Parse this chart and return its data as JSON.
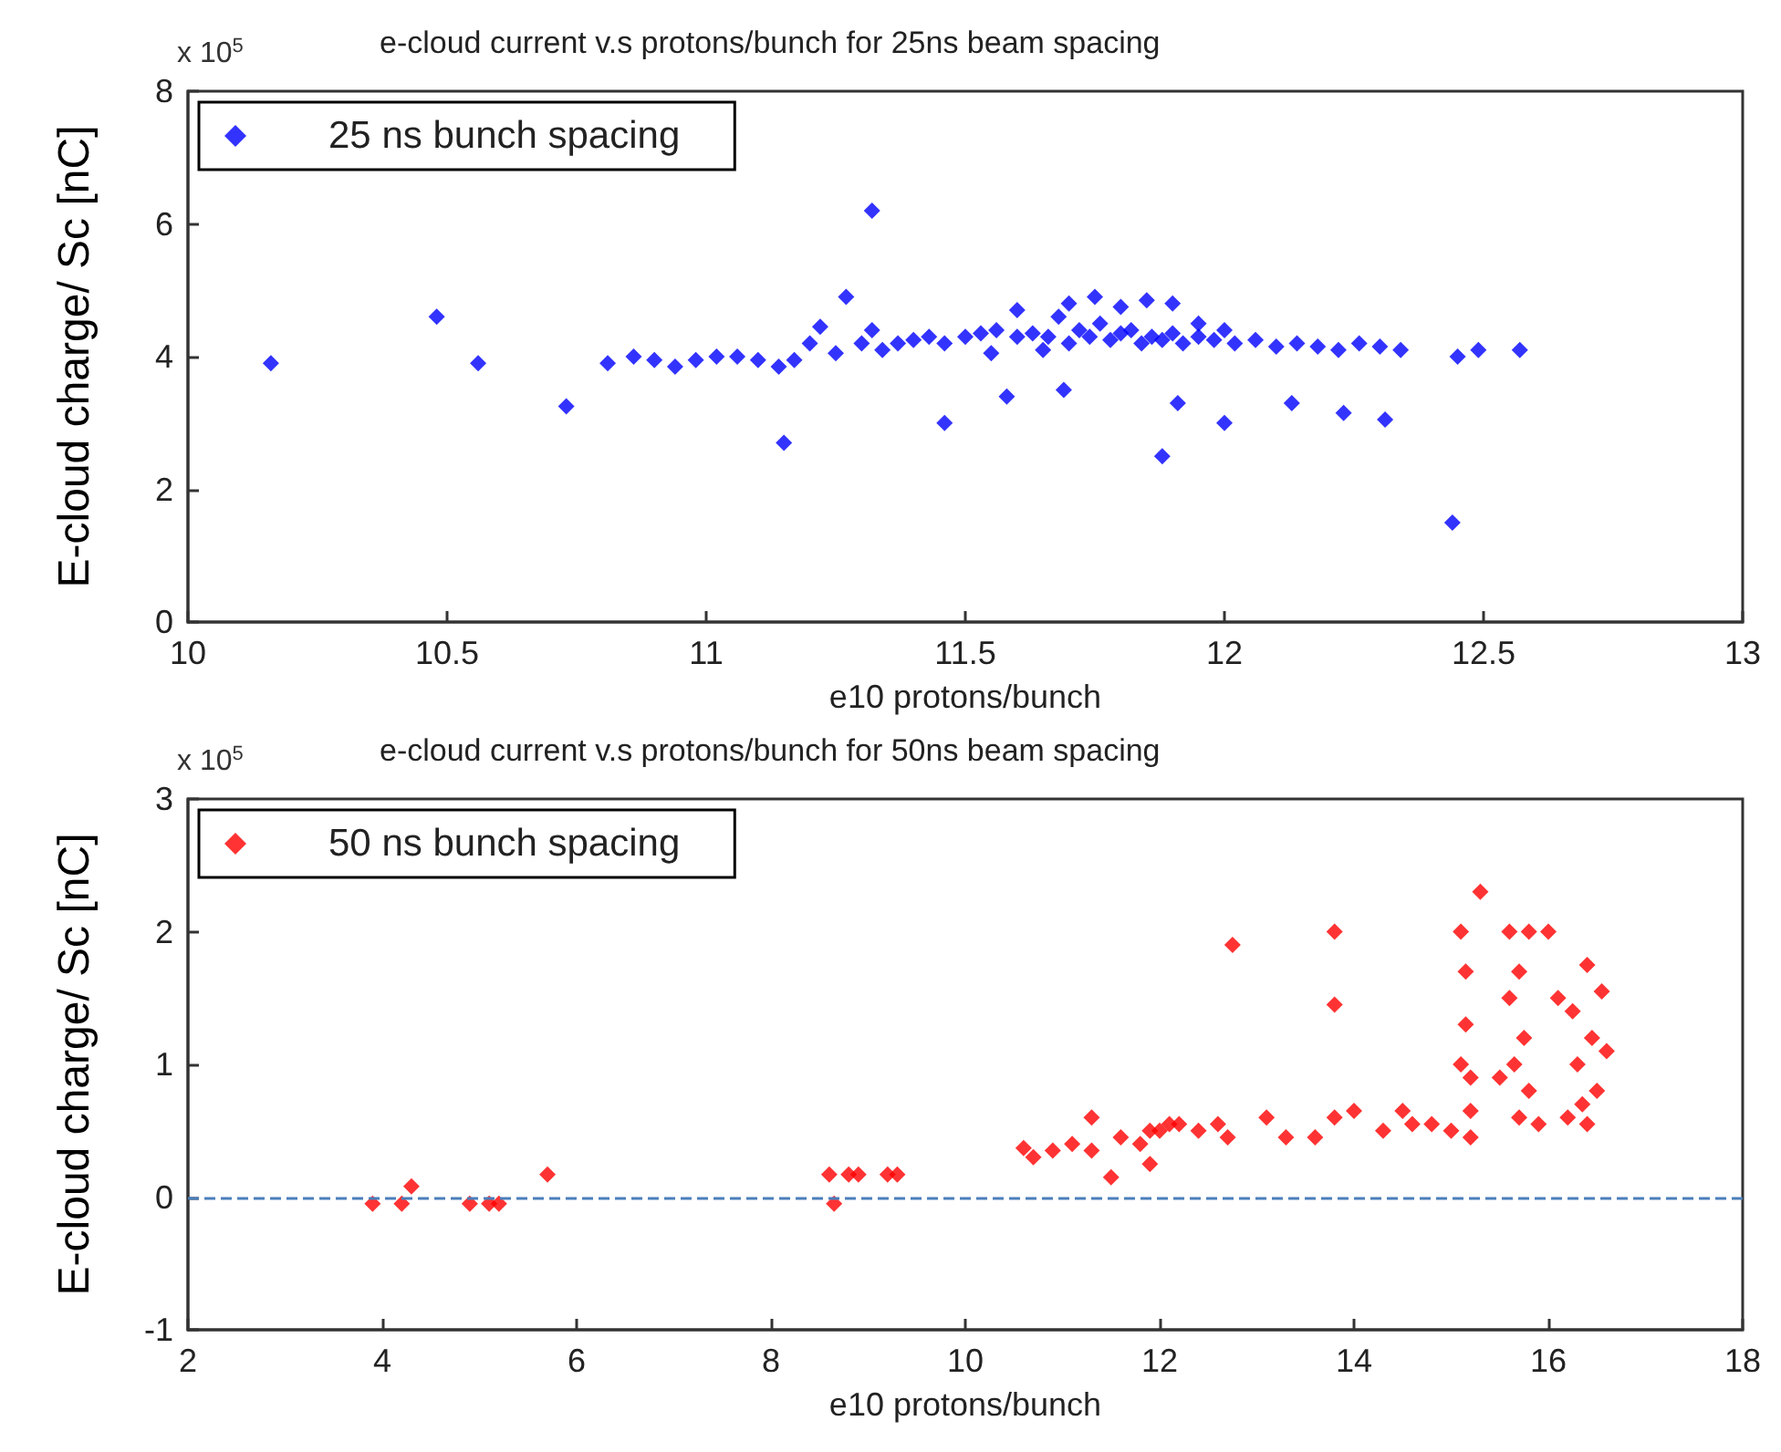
{
  "chart_data": [
    {
      "type": "scatter",
      "title": "e-cloud current v.s protons/bunch for 25ns beam spacing",
      "xlabel": "e10 protons/bunch",
      "ylabel": "E-cloud charge/ Sc [nC]",
      "annotations": [
        "x 10$^{5}$"
      ],
      "xlim": [
        10,
        13
      ],
      "xticks": [
        10,
        10.5,
        11,
        11.5,
        12,
        12.5,
        13
      ],
      "ylim": [
        0,
        8
      ],
      "yticks": [
        0,
        2,
        4,
        6,
        8
      ],
      "grid": false,
      "legend": "top left",
      "marker": "diamond",
      "series": [
        {
          "name": "25 ns bunch spacing",
          "color": "#0000ff",
          "x": [
            10.16,
            10.48,
            10.56,
            10.73,
            10.81,
            10.86,
            10.9,
            10.94,
            10.98,
            11.02,
            11.06,
            11.1,
            11.14,
            11.17,
            11.2,
            11.22,
            11.25,
            11.27,
            11.3,
            11.32,
            11.34,
            11.37,
            11.4,
            11.43,
            11.46,
            11.5,
            11.53,
            11.56,
            11.6,
            11.63,
            11.66,
            11.68,
            11.7,
            11.72,
            11.74,
            11.76,
            11.78,
            11.8,
            11.82,
            11.84,
            11.86,
            11.88,
            11.9,
            11.92,
            11.95,
            11.98,
            12.02,
            12.06,
            12.1,
            12.14,
            12.18,
            12.22,
            12.26,
            12.3,
            12.34,
            11.6,
            11.7,
            11.75,
            11.8,
            11.85,
            11.9,
            11.65,
            11.55,
            11.95,
            12.0,
            11.15,
            11.32,
            11.46,
            11.58,
            11.69,
            11.88,
            11.91,
            12.0,
            12.13,
            12.23,
            12.31,
            12.44,
            12.45,
            12.49,
            12.57
          ],
          "values": [
            3.9,
            4.6,
            3.9,
            3.25,
            3.9,
            4.0,
            3.95,
            3.85,
            3.95,
            4.0,
            4.0,
            3.95,
            3.85,
            3.95,
            4.2,
            4.45,
            4.05,
            4.9,
            4.2,
            4.4,
            4.1,
            4.2,
            4.25,
            4.3,
            4.2,
            4.3,
            4.35,
            4.4,
            4.3,
            4.35,
            4.3,
            4.6,
            4.2,
            4.4,
            4.3,
            4.5,
            4.25,
            4.35,
            4.4,
            4.2,
            4.3,
            4.25,
            4.35,
            4.2,
            4.3,
            4.25,
            4.2,
            4.25,
            4.15,
            4.2,
            4.15,
            4.1,
            4.2,
            4.15,
            4.1,
            4.7,
            4.8,
            4.9,
            4.75,
            4.85,
            4.8,
            4.1,
            4.05,
            4.5,
            4.4,
            2.7,
            6.2,
            3.0,
            3.4,
            3.5,
            2.5,
            3.3,
            3.0,
            3.3,
            3.15,
            3.05,
            1.5,
            4.0,
            4.1,
            4.1
          ]
        }
      ]
    },
    {
      "type": "scatter",
      "title": "e-cloud current v.s protons/bunch for 50ns beam spacing",
      "xlabel": "e10 protons/bunch",
      "ylabel": "E-cloud charge/ Sc [nC]",
      "annotations": [
        "x 10$^{5}$"
      ],
      "xlim": [
        2,
        18
      ],
      "xticks": [
        2,
        4,
        6,
        8,
        10,
        12,
        14,
        16,
        18
      ],
      "ylim": [
        -1,
        3
      ],
      "yticks": [
        -1,
        0,
        1,
        2,
        3
      ],
      "grid": false,
      "legend": "top left",
      "marker": "diamond",
      "ref_lines": [
        {
          "axis": "y",
          "value": 0,
          "color": "#4a7ebb",
          "line_style": "dashed"
        }
      ],
      "series": [
        {
          "name": "50 ns bunch spacing",
          "color": "#ff0000",
          "x": [
            3.9,
            4.2,
            4.3,
            4.9,
            5.1,
            5.2,
            5.7,
            8.6,
            8.65,
            8.8,
            8.9,
            9.2,
            9.3,
            10.6,
            10.7,
            10.9,
            11.1,
            11.3,
            11.3,
            11.5,
            11.6,
            11.8,
            11.9,
            11.9,
            12.0,
            12.1,
            12.2,
            12.4,
            12.6,
            12.7,
            12.75,
            13.1,
            13.3,
            13.6,
            13.8,
            13.8,
            13.8,
            14.0,
            14.3,
            14.5,
            14.6,
            14.8,
            15.0,
            15.1,
            15.1,
            15.15,
            15.15,
            15.2,
            15.2,
            15.2,
            15.3,
            15.5,
            15.6,
            15.6,
            15.65,
            15.7,
            15.7,
            15.75,
            15.8,
            15.8,
            15.9,
            16.0,
            16.1,
            16.2,
            16.25,
            16.3,
            16.35,
            16.4,
            16.4,
            16.45,
            16.5,
            16.55,
            16.6
          ],
          "values": [
            -0.05,
            -0.05,
            0.08,
            -0.05,
            -0.05,
            -0.05,
            0.17,
            0.17,
            -0.05,
            0.17,
            0.17,
            0.17,
            0.17,
            0.37,
            0.3,
            0.35,
            0.4,
            0.6,
            0.35,
            0.15,
            0.45,
            0.4,
            0.25,
            0.5,
            0.5,
            0.55,
            0.55,
            0.5,
            0.55,
            0.45,
            1.9,
            0.6,
            0.45,
            0.45,
            2.0,
            1.45,
            0.6,
            0.65,
            0.5,
            0.65,
            0.55,
            0.55,
            0.5,
            1.0,
            2.0,
            1.7,
            1.3,
            0.9,
            0.65,
            0.45,
            2.3,
            0.9,
            2.0,
            1.5,
            1.0,
            0.6,
            1.7,
            1.2,
            0.8,
            2.0,
            0.55,
            2.0,
            1.5,
            0.6,
            1.4,
            1.0,
            0.7,
            1.75,
            0.55,
            1.2,
            0.8,
            1.55,
            1.1
          ]
        }
      ]
    }
  ]
}
